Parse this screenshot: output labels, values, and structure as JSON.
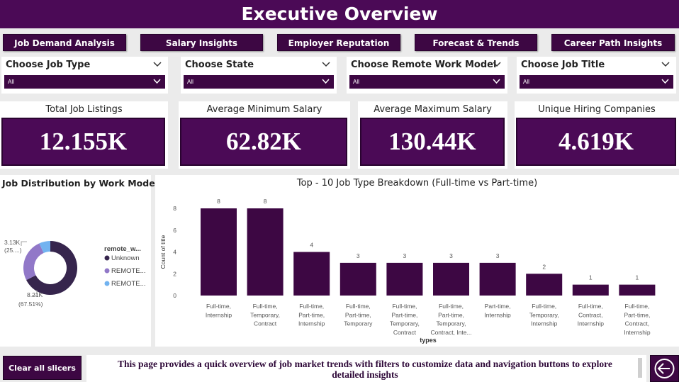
{
  "header": {
    "title": "Executive Overview"
  },
  "nav": [
    {
      "id": "job-demand-analysis",
      "label": "Job Demand Analysis"
    },
    {
      "id": "salary-insights",
      "label": "Salary Insights"
    },
    {
      "id": "employer-reputation",
      "label": "Employer Reputation"
    },
    {
      "id": "forecast-trends",
      "label": "Forecast & Trends"
    },
    {
      "id": "career-path-insights",
      "label": "Career Path Insights"
    }
  ],
  "slicers": [
    {
      "id": "job-type",
      "title": "Choose Job Type",
      "value": "All"
    },
    {
      "id": "state",
      "title": "Choose State",
      "value": "All"
    },
    {
      "id": "remote-work-model",
      "title": "Choose Remote Work Model",
      "value": "All"
    },
    {
      "id": "job-title",
      "title": "Choose Job Title",
      "value": "All"
    }
  ],
  "kpis": [
    {
      "id": "total-job-listings",
      "title": "Total Job Listings",
      "value": "12.155K"
    },
    {
      "id": "average-minimum-salary",
      "title": "Average Minimum Salary",
      "value": "62.82K"
    },
    {
      "id": "average-maximum-salary",
      "title": "Average Maximum Salary",
      "value": "130.44K"
    },
    {
      "id": "unique-hiring-companies",
      "title": "Unique Hiring Companies",
      "value": "4.619K"
    }
  ],
  "chart_data": [
    {
      "type": "pie",
      "title": "Job Distribution by Work Model",
      "legend_title": "remote_w...",
      "legend_position": "right",
      "slices": [
        {
          "name": "Unknown",
          "value": 8.21,
          "label_value": "8.21K",
          "label_pct": "(67.51%)",
          "color": "#36254d"
        },
        {
          "name": "REMOTE...",
          "value": 3.13,
          "label_value": "3.13K",
          "label_pct": "(25....)",
          "color": "#9178c8"
        },
        {
          "name": "REMOTE...",
          "value": 0.815,
          "color": "#72b3f0"
        }
      ]
    },
    {
      "type": "bar",
      "title": "Top - 10 Job Type Breakdown (Full-time vs Part-time)",
      "xlabel": "types",
      "ylabel": "Count of title",
      "ylim": [
        0,
        8
      ],
      "yticks": [
        0,
        2,
        4,
        6,
        8
      ],
      "grid": false,
      "color": "#3d0743",
      "categories": [
        [
          "Full-time,",
          "Internship"
        ],
        [
          "Full-time,",
          "Temporary,",
          "Contract"
        ],
        [
          "Full-time,",
          "Part-time,",
          "Internship"
        ],
        [
          "Full-time,",
          "Part-time,",
          "Temporary"
        ],
        [
          "Full-time,",
          "Part-time,",
          "Temporary,",
          "Contract"
        ],
        [
          "Full-time,",
          "Part-time,",
          "Temporary,",
          "Contract, Inte..."
        ],
        [
          "Part-time,",
          "Internship"
        ],
        [
          "Full-time,",
          "Temporary,",
          "Internship"
        ],
        [
          "Full-time,",
          "Contract,",
          "Internship"
        ],
        [
          "Full-time,",
          "Part-time,",
          "Contract,",
          "Internship"
        ]
      ],
      "values": [
        8,
        8,
        4,
        3,
        3,
        3,
        3,
        2,
        1,
        1
      ]
    }
  ],
  "footer": {
    "clear_label": "Clear all slicers",
    "note": "This page provides a quick overview of job market trends with filters to customize data and navigation buttons to explore detailed insights",
    "back_icon": "back-arrow-icon"
  }
}
